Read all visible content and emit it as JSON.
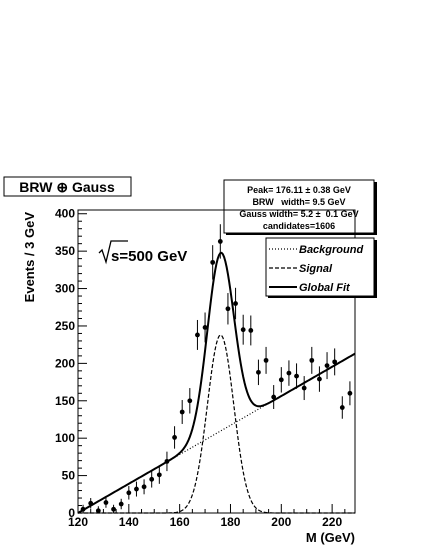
{
  "chart_data": {
    "type": "scatter",
    "title_box": "BRW ⊕ Gauss",
    "xlabel": "M (GeV)",
    "ylabel": "Events / 3 GeV",
    "energy_label": "√s=500 GeV",
    "xlim": [
      120,
      229
    ],
    "ylim": [
      0,
      405
    ],
    "xticks": [
      120,
      140,
      160,
      180,
      200,
      220
    ],
    "xtick_labels": [
      "120",
      "140",
      "160",
      "180",
      "200",
      "220"
    ],
    "yticks": [
      0,
      50,
      100,
      150,
      200,
      250,
      300,
      350,
      400
    ],
    "ytick_labels": [
      "0",
      "50",
      "100",
      "150",
      "200",
      "250",
      "300",
      "350",
      "400"
    ],
    "stats_box": [
      "Peak= 176.11 ± 0.38 GeV",
      "BRW   width= 9.5 GeV",
      "Gauss width= 5.2 ±  0.1 GeV",
      "candidates=1606"
    ],
    "legend": [
      {
        "label": "Background",
        "style": "dotted"
      },
      {
        "label": "Signal",
        "style": "dashed"
      },
      {
        "label": "Global Fit",
        "style": "solid"
      }
    ],
    "data_points": {
      "x": [
        122,
        125,
        128,
        131,
        134,
        137,
        140,
        143,
        146,
        149,
        152,
        155,
        158,
        161,
        164,
        167,
        170,
        173,
        176,
        179,
        182,
        185,
        188,
        191,
        194,
        197,
        200,
        203,
        206,
        209,
        212,
        215,
        218,
        221,
        224,
        227
      ],
      "y": [
        5,
        13,
        3,
        14,
        5,
        12,
        27,
        32,
        35,
        45,
        51,
        69,
        101,
        135,
        150,
        238,
        248,
        335,
        363,
        273,
        280,
        245,
        244,
        188,
        204,
        155,
        178,
        187,
        183,
        167,
        204,
        179,
        197,
        202,
        141,
        160
      ],
      "yerr": [
        6,
        7,
        6,
        7,
        6,
        7,
        9,
        10,
        10,
        11,
        12,
        13,
        15,
        16,
        17,
        20,
        20,
        23,
        23,
        21,
        21,
        20,
        20,
        17,
        18,
        16,
        17,
        17,
        17,
        16,
        18,
        17,
        18,
        18,
        15,
        16
      ]
    },
    "series": [
      {
        "name": "Background",
        "x": [
          120,
          229
        ],
        "y": [
          0,
          213
        ]
      },
      {
        "name": "Signal",
        "function": "gaussian",
        "peak_x": 176.11,
        "amplitude": 238,
        "width": 5.2,
        "x_range": [
          120,
          229
        ]
      },
      {
        "name": "Global Fit",
        "function": "background + signal",
        "x_range": [
          120,
          229
        ]
      }
    ]
  }
}
